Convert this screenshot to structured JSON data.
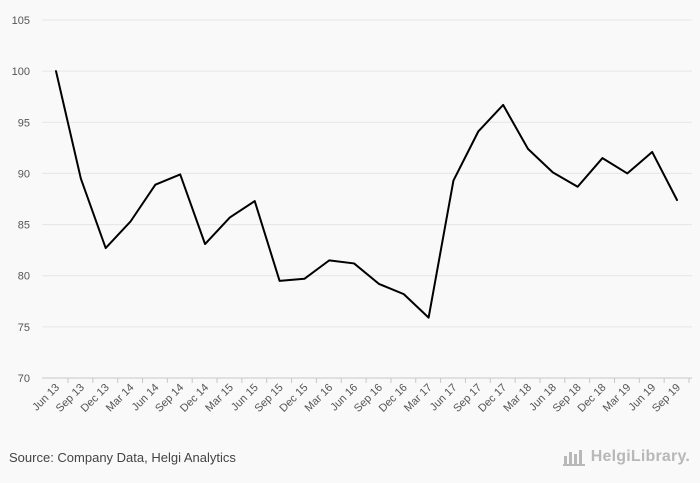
{
  "chart_data": {
    "type": "line",
    "title": "",
    "xlabel": "",
    "ylabel": "",
    "ylim": [
      70,
      105
    ],
    "yticks": [
      70,
      75,
      80,
      85,
      90,
      95,
      100,
      105
    ],
    "grid": "horizontal",
    "categories": [
      "Jun 13",
      "Sep 13",
      "Dec 13",
      "Mar 14",
      "Jun 14",
      "Sep 14",
      "Dec 14",
      "Mar 15",
      "Jun 15",
      "Sep 15",
      "Dec 15",
      "Mar 16",
      "Jun 16",
      "Sep 16",
      "Dec 16",
      "Mar 17",
      "Jun 17",
      "Sep 17",
      "Dec 17",
      "Mar 18",
      "Jun 18",
      "Sep 18",
      "Dec 18",
      "Mar 19",
      "Jun 19",
      "Sep 19"
    ],
    "series": [
      {
        "values": [
          100.0,
          89.5,
          82.7,
          85.3,
          88.9,
          89.9,
          83.1,
          85.7,
          87.3,
          79.5,
          79.7,
          81.5,
          81.2,
          79.2,
          78.2,
          75.9,
          89.3,
          94.1,
          96.7,
          92.4,
          90.1,
          88.7,
          91.5,
          90.0,
          92.1,
          87.4
        ]
      }
    ],
    "line_color": "#000000",
    "grid_color": "#e6e6e6"
  },
  "footer": {
    "source": "Source: Company Data, Helgi Analytics",
    "brand": "HelgiLibrary."
  },
  "icons": {
    "brand_logo": "bar-chart-logo-icon"
  }
}
